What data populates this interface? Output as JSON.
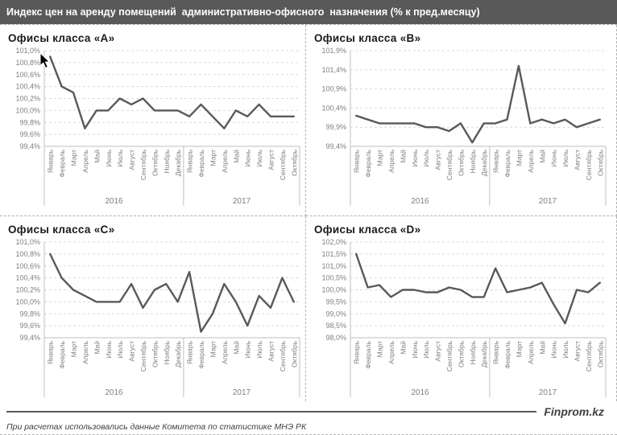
{
  "title_bar": {
    "title": "Индекс цен на аренду помещений  административно-офисного  назначения (% к пред.месяцу)"
  },
  "footer": {
    "brand": "Finprom.kz",
    "note": "При расчетах использовались данные Комитета по статистике МНЭ РК"
  },
  "colors": {
    "titlebar_bg": "#595959",
    "series_line": "#595959",
    "gridline": "#d9d9d9",
    "axis": "#bfbfbf",
    "tick_text": "#7f7f7f",
    "dashed_border": "#b3b3b3"
  },
  "chart_data": [
    {
      "type": "line",
      "title": "Офисы класса «А»",
      "categories": [
        "Январь",
        "Февраль",
        "Март",
        "Апрель",
        "Май",
        "Июнь",
        "Июль",
        "Август",
        "Сентябрь",
        "Октябрь",
        "Ноябрь",
        "Декабрь",
        "Январь",
        "Февраль",
        "Март",
        "Апрель",
        "Май",
        "Июнь",
        "Июль",
        "Август",
        "Сентябрь",
        "Октябрь"
      ],
      "year_groups": [
        {
          "label": "2016",
          "count": 12
        },
        {
          "label": "2017",
          "count": 10
        }
      ],
      "values": [
        100.9,
        100.4,
        100.3,
        99.7,
        100.0,
        100.0,
        100.2,
        100.1,
        100.2,
        100.0,
        100.0,
        100.0,
        99.9,
        100.1,
        99.9,
        99.7,
        100.0,
        99.9,
        100.1,
        99.9,
        99.9,
        99.9
      ],
      "ytick_values": [
        101.0,
        100.8,
        100.6,
        100.4,
        100.2,
        100.0,
        99.8,
        99.6,
        99.4
      ],
      "ytick_labels": [
        "101,0%",
        "100,8%",
        "100,6%",
        "100,4%",
        "100,2%",
        "100,0%",
        "99,8%",
        "99,6%",
        "99,4%"
      ],
      "ylim": [
        99.4,
        101.0
      ],
      "grid": "dashed-horizontal",
      "legend": "none"
    },
    {
      "type": "line",
      "title": "Офисы класса «В»",
      "categories": [
        "Январь",
        "Февраль",
        "Март",
        "Апрель",
        "Май",
        "Июнь",
        "Июль",
        "Август",
        "Сентябрь",
        "Октябрь",
        "Ноябрь",
        "Декабрь",
        "Январь",
        "Февраль",
        "Март",
        "Апрель",
        "Май",
        "Июнь",
        "Июль",
        "Август",
        "Сентябрь",
        "Октябрь"
      ],
      "year_groups": [
        {
          "label": "2016",
          "count": 12
        },
        {
          "label": "2017",
          "count": 10
        }
      ],
      "values": [
        100.2,
        100.1,
        100.0,
        100.0,
        100.0,
        100.0,
        99.9,
        99.9,
        99.8,
        100.0,
        99.5,
        100.0,
        100.0,
        100.1,
        101.5,
        100.0,
        100.1,
        100.0,
        100.1,
        99.9,
        100.0,
        100.1
      ],
      "ytick_values": [
        101.9,
        101.4,
        100.9,
        100.4,
        99.9,
        99.4
      ],
      "ytick_labels": [
        "101,9%",
        "101,4%",
        "100,9%",
        "100,4%",
        "99,9%",
        "99,4%"
      ],
      "ylim": [
        99.4,
        101.9
      ],
      "grid": "dashed-horizontal",
      "legend": "none"
    },
    {
      "type": "line",
      "title": "Офисы класса «С»",
      "categories": [
        "Январь",
        "Февраль",
        "Март",
        "Апрель",
        "Май",
        "Июнь",
        "Июль",
        "Август",
        "Сентябрь",
        "Октябрь",
        "Ноябрь",
        "Декабрь",
        "Январь",
        "Февраль",
        "Март",
        "Апрель",
        "Май",
        "Июнь",
        "Июль",
        "Август",
        "Сентябрь",
        "Октябрь"
      ],
      "year_groups": [
        {
          "label": "2016",
          "count": 12
        },
        {
          "label": "2017",
          "count": 10
        }
      ],
      "values": [
        100.8,
        100.4,
        100.2,
        100.1,
        100.0,
        100.0,
        100.0,
        100.3,
        99.9,
        100.2,
        100.3,
        100.0,
        100.5,
        99.5,
        99.8,
        100.3,
        100.0,
        99.6,
        100.1,
        99.9,
        100.4,
        100.0
      ],
      "ytick_values": [
        101.0,
        100.8,
        100.6,
        100.4,
        100.2,
        100.0,
        99.8,
        99.6,
        99.4
      ],
      "ytick_labels": [
        "101,0%",
        "100,8%",
        "100,6%",
        "100,4%",
        "100,2%",
        "100,0%",
        "99,8%",
        "99,6%",
        "99,4%"
      ],
      "ylim": [
        99.4,
        101.0
      ],
      "grid": "dashed-horizontal",
      "legend": "none"
    },
    {
      "type": "line",
      "title": "Офисы класса «D»",
      "categories": [
        "Январь",
        "Февраль",
        "Март",
        "Апрель",
        "Май",
        "Июнь",
        "Июль",
        "Август",
        "Сентябрь",
        "Октябрь",
        "Ноябрь",
        "Декабрь",
        "Январь",
        "Февраль",
        "Март",
        "Апрель",
        "Май",
        "Июнь",
        "Июль",
        "Август",
        "Сентябрь",
        "Октябрь"
      ],
      "year_groups": [
        {
          "label": "2016",
          "count": 12
        },
        {
          "label": "2017",
          "count": 10
        }
      ],
      "values": [
        101.5,
        100.1,
        100.2,
        99.7,
        100.0,
        100.0,
        99.9,
        99.9,
        100.1,
        100.0,
        99.7,
        99.7,
        100.9,
        99.9,
        100.0,
        100.1,
        100.3,
        99.4,
        98.6,
        100.0,
        99.9,
        100.3
      ],
      "ytick_values": [
        102.0,
        101.5,
        101.0,
        100.5,
        100.0,
        99.5,
        99.0,
        98.5,
        98.0
      ],
      "ytick_labels": [
        "102,0%",
        "101,5%",
        "101,0%",
        "100,5%",
        "100,0%",
        "99,5%",
        "99,0%",
        "98,5%",
        "98,0%"
      ],
      "ylim": [
        98.0,
        102.0
      ],
      "grid": "dashed-horizontal",
      "legend": "none"
    }
  ]
}
